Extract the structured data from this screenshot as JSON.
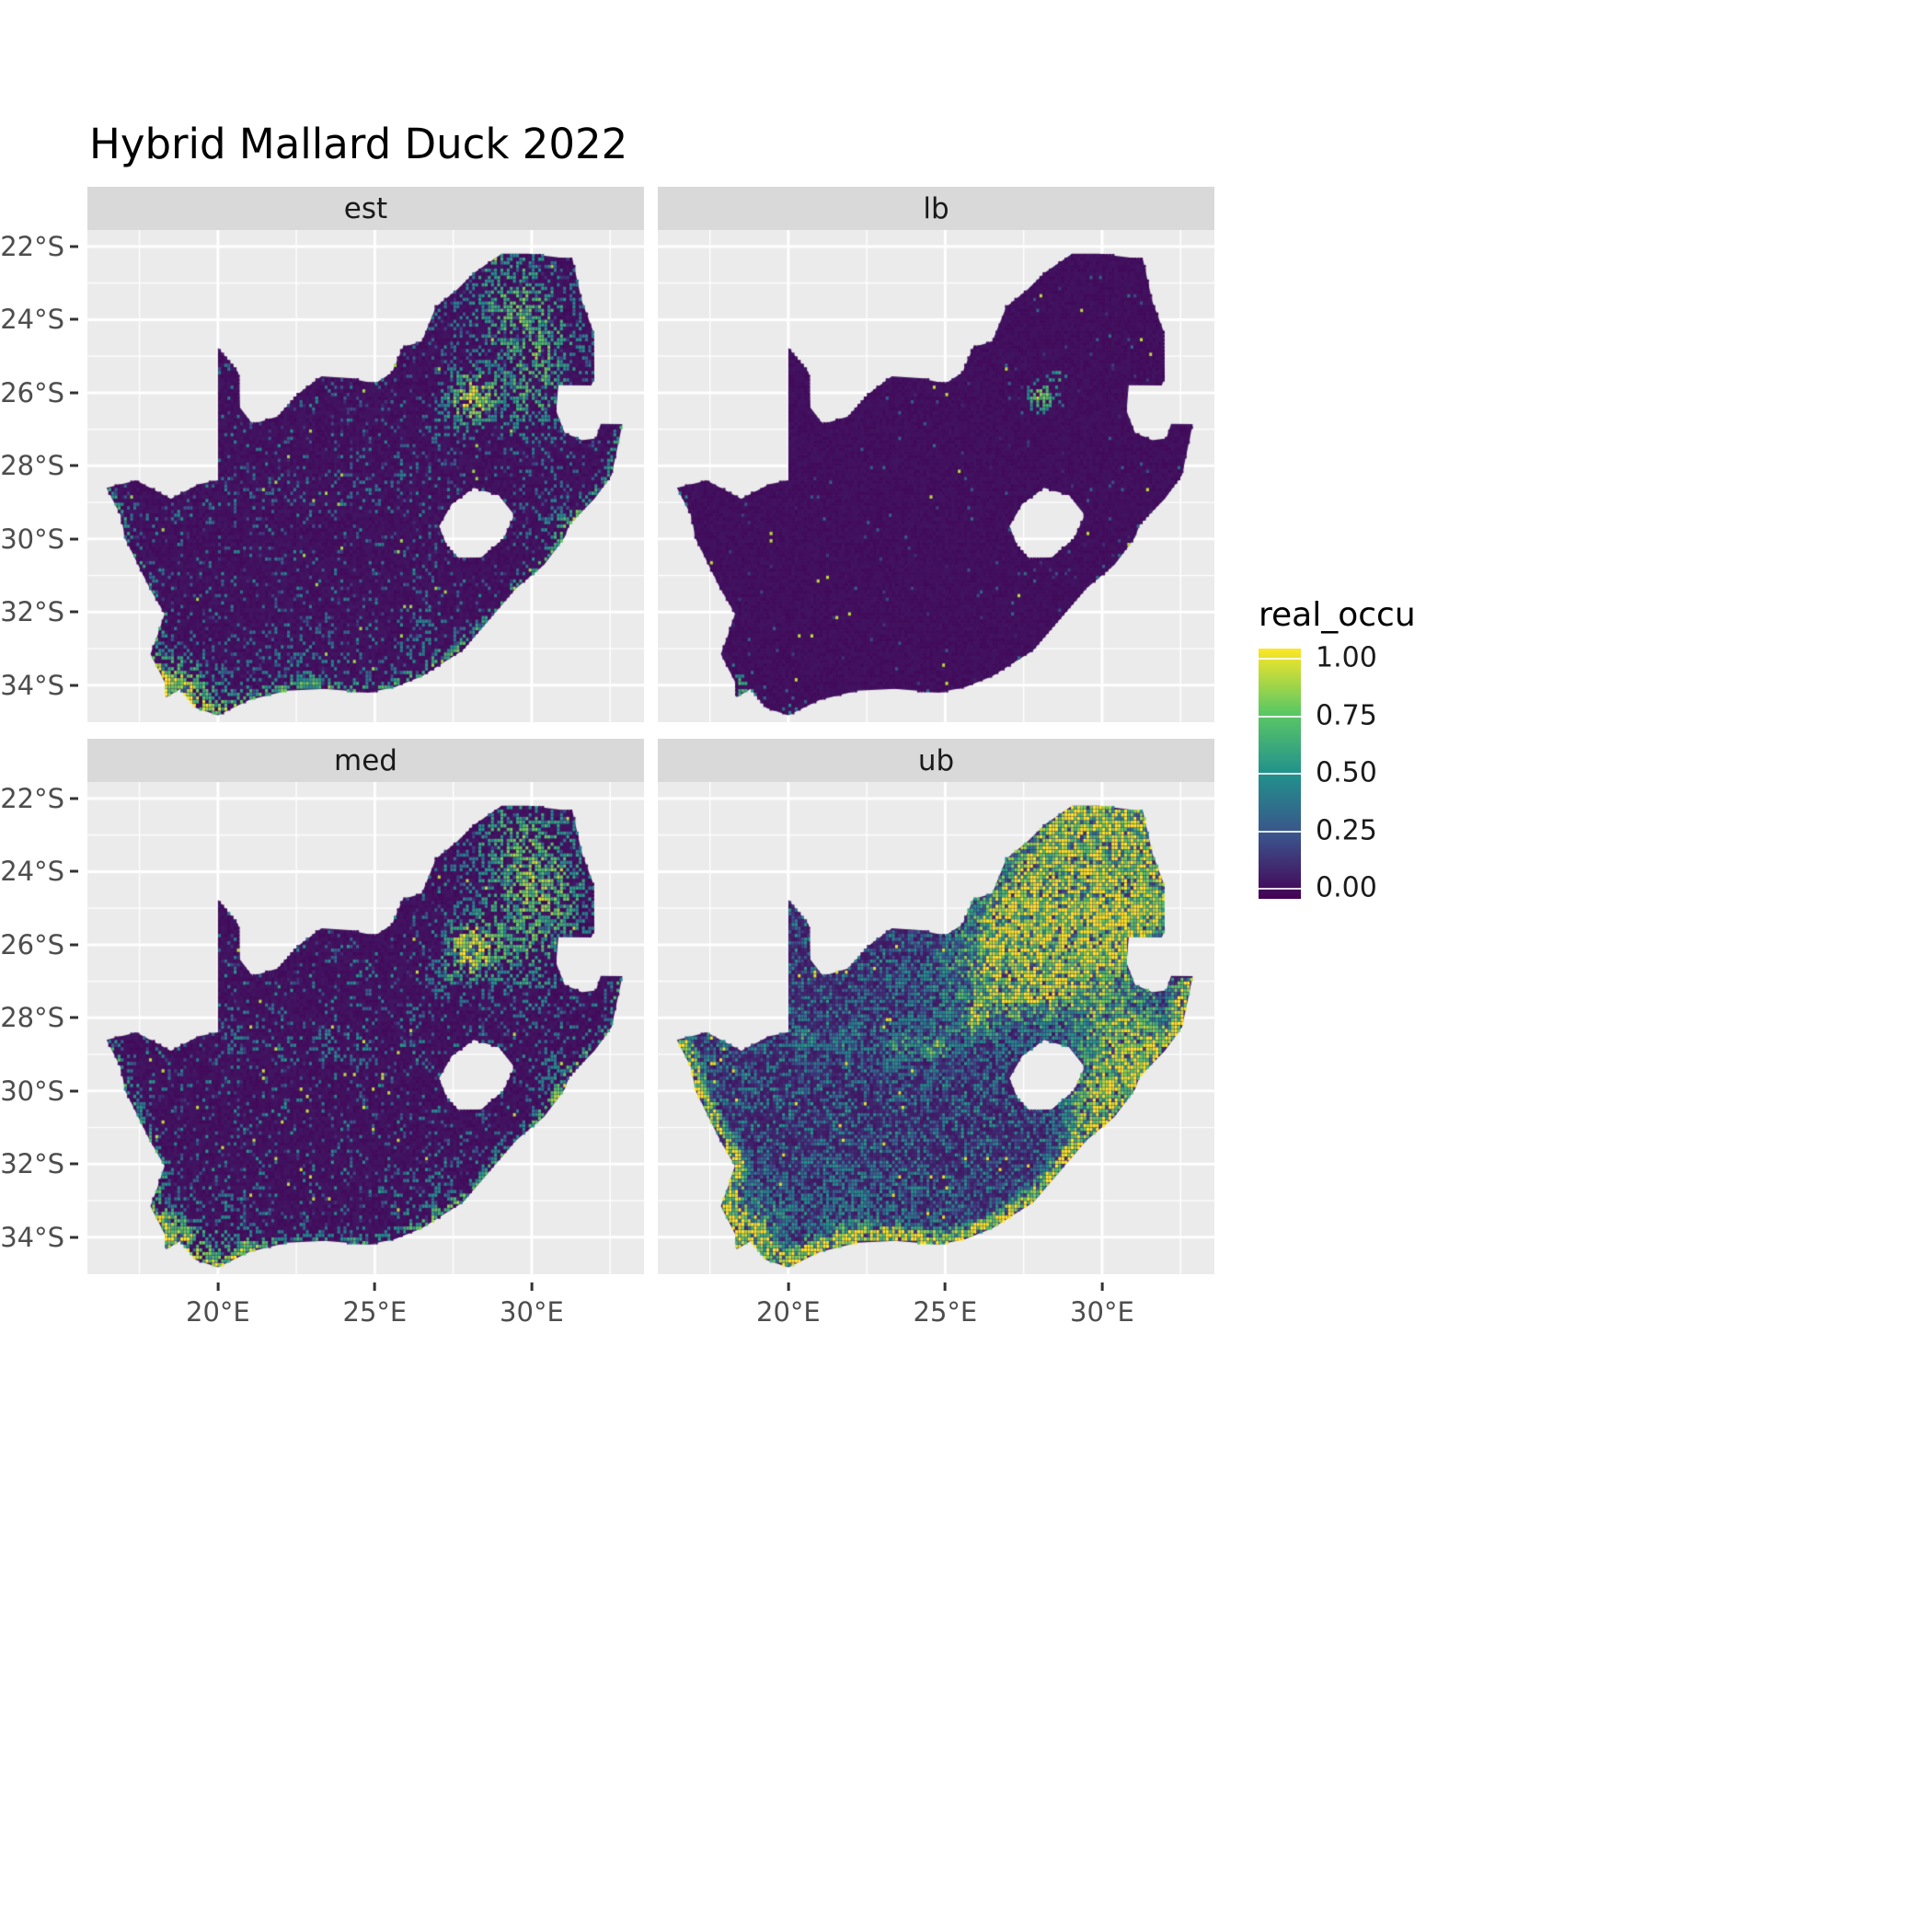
{
  "title": "Hybrid Mallard Duck 2022",
  "legend": {
    "title": "real_occu",
    "ticks": [
      "1.00",
      "0.75",
      "0.50",
      "0.25",
      "0.00"
    ]
  },
  "axes": {
    "x_ticks": [
      "20°E",
      "25°E",
      "30°E"
    ],
    "y_ticks": [
      "22°S",
      "24°S",
      "26°S",
      "28°S",
      "30°S",
      "32°S",
      "34°S"
    ]
  },
  "colors": {
    "panel_background": "#ebebeb",
    "strip_background": "#d9d9d9",
    "gridline": "#ffffff",
    "axis_text": "#4d4d4d",
    "title_text": "#000000"
  },
  "chart_data": {
    "type": "heatmap",
    "title": "Hybrid Mallard Duck 2022",
    "region": "South Africa",
    "variable": "real_occu",
    "value_range": [
      0,
      1
    ],
    "colormap": "viridis",
    "colormap_stops": [
      [
        "0.00",
        "#440154"
      ],
      [
        "0.25",
        "#3b528b"
      ],
      [
        "0.50",
        "#21918c"
      ],
      [
        "0.75",
        "#5ec962"
      ],
      [
        "1.00",
        "#fde725"
      ]
    ],
    "facet_labels": [
      "est",
      "lb",
      "med",
      "ub"
    ],
    "x_domain_deg_east": [
      15.84,
      33.58
    ],
    "y_domain_deg_south": [
      21.55,
      35.01
    ],
    "x_gridlines_major": [
      20,
      25,
      30
    ],
    "x_gridlines_minor": [
      17.5,
      22.5,
      27.5,
      32.5
    ],
    "y_gridlines_major": [
      22,
      24,
      26,
      28,
      30,
      32,
      34
    ],
    "y_gridlines_minor": [
      23,
      25,
      27,
      29,
      31,
      33
    ],
    "facets": [
      {
        "label": "est",
        "seed": 101,
        "base": 0.02,
        "texture": 0.05,
        "speckle_p": 0.1,
        "speckle_v": [
          0.12,
          0.5
        ],
        "dot_p": 0.004,
        "dot_v": 0.85,
        "coast_s": 0.45,
        "coast_r": 0.2,
        "hotspots": [
          [
            28.05,
            26.15,
            0.55,
            0.95
          ],
          [
            29.35,
            23.3,
            1.2,
            0.5
          ],
          [
            30.4,
            24.9,
            1.0,
            0.45
          ],
          [
            29.9,
            26.5,
            0.8,
            0.35
          ],
          [
            30.9,
            29.6,
            0.8,
            0.3
          ],
          [
            26.8,
            32.9,
            1.0,
            0.25
          ],
          [
            18.6,
            33.95,
            0.55,
            0.7
          ],
          [
            19.5,
            34.5,
            0.8,
            0.45
          ],
          [
            22.5,
            34.1,
            1.2,
            0.3
          ],
          [
            20.5,
            28.55,
            0.35,
            0.22
          ],
          [
            22.0,
            28.6,
            0.35,
            0.22
          ],
          [
            23.5,
            28.7,
            0.35,
            0.22
          ],
          [
            24.7,
            28.8,
            0.35,
            0.22
          ],
          [
            26.0,
            28.0,
            0.35,
            0.22
          ],
          [
            27.2,
            27.0,
            0.4,
            0.25
          ]
        ]
      },
      {
        "label": "lb",
        "seed": 202,
        "base": 0.02,
        "texture": 0.04,
        "speckle_p": 0.012,
        "speckle_v": [
          0.1,
          0.35
        ],
        "dot_p": 0.0015,
        "dot_v": 0.9,
        "coast_s": 0.04,
        "coast_r": 0.12,
        "hotspots": [
          [
            28.05,
            26.1,
            0.3,
            0.8
          ],
          [
            28.6,
            25.55,
            0.18,
            0.45
          ],
          [
            18.45,
            34.05,
            0.35,
            0.5
          ],
          [
            20.0,
            34.8,
            0.25,
            0.3
          ],
          [
            16.6,
            28.75,
            0.2,
            0.3
          ]
        ]
      },
      {
        "label": "med",
        "seed": 303,
        "base": 0.02,
        "texture": 0.05,
        "speckle_p": 0.12,
        "speckle_v": [
          0.12,
          0.55
        ],
        "dot_p": 0.005,
        "dot_v": 0.9,
        "coast_s": 0.5,
        "coast_r": 0.2,
        "hotspots": [
          [
            28.05,
            26.1,
            0.6,
            1.0
          ],
          [
            29.6,
            23.25,
            1.25,
            0.55
          ],
          [
            30.5,
            24.8,
            1.05,
            0.5
          ],
          [
            29.9,
            26.6,
            0.9,
            0.4
          ],
          [
            30.9,
            29.7,
            0.8,
            0.3
          ],
          [
            18.5,
            34.0,
            0.6,
            0.85
          ],
          [
            20.3,
            34.6,
            0.9,
            0.5
          ],
          [
            26.8,
            33.0,
            1.0,
            0.25
          ],
          [
            20.5,
            28.55,
            0.35,
            0.28
          ],
          [
            22.0,
            28.6,
            0.35,
            0.28
          ],
          [
            23.5,
            28.7,
            0.35,
            0.28
          ],
          [
            24.7,
            28.8,
            0.35,
            0.28
          ],
          [
            26.0,
            28.0,
            0.35,
            0.28
          ],
          [
            27.2,
            27.0,
            0.4,
            0.28
          ]
        ]
      },
      {
        "label": "ub",
        "seed": 404,
        "base": 0.06,
        "texture": 0.08,
        "speckle_p": 0.5,
        "speckle_v": [
          0.12,
          0.55
        ],
        "dot_p": 0.02,
        "dot_v": 0.95,
        "coast_s": 1.3,
        "coast_r": 0.28,
        "hotspots": [
          [
            29.5,
            23.2,
            1.7,
            1.0
          ],
          [
            28.2,
            25.9,
            1.35,
            1.0
          ],
          [
            30.6,
            24.7,
            1.4,
            0.95
          ],
          [
            27.3,
            26.3,
            1.3,
            0.55
          ],
          [
            30.9,
            28.8,
            1.2,
            0.85
          ],
          [
            29.8,
            30.5,
            0.9,
            0.7
          ],
          [
            25.0,
            27.5,
            1.5,
            0.3
          ],
          [
            18.6,
            33.8,
            0.8,
            0.8
          ],
          [
            22.0,
            33.6,
            1.5,
            0.35
          ],
          [
            20.5,
            28.55,
            0.35,
            0.5
          ],
          [
            22.0,
            28.6,
            0.35,
            0.5
          ],
          [
            23.5,
            28.7,
            0.35,
            0.5
          ],
          [
            24.7,
            28.8,
            0.35,
            0.5
          ],
          [
            26.0,
            28.0,
            0.35,
            0.5
          ],
          [
            27.2,
            27.0,
            0.4,
            0.55
          ]
        ]
      }
    ],
    "geometry": {
      "outline": [
        [
          20.0,
          24.77
        ],
        [
          20.65,
          25.45
        ],
        [
          20.7,
          26.4
        ],
        [
          21.1,
          26.86
        ],
        [
          21.9,
          26.65
        ],
        [
          22.6,
          26.0
        ],
        [
          23.3,
          25.55
        ],
        [
          24.2,
          25.6
        ],
        [
          25.0,
          25.75
        ],
        [
          25.55,
          25.45
        ],
        [
          25.9,
          24.75
        ],
        [
          26.5,
          24.6
        ],
        [
          26.95,
          23.65
        ],
        [
          27.6,
          23.2
        ],
        [
          28.2,
          22.7
        ],
        [
          29.05,
          22.2
        ],
        [
          29.9,
          22.2
        ],
        [
          31.3,
          22.35
        ],
        [
          31.6,
          23.5
        ],
        [
          31.95,
          24.3
        ],
        [
          32.0,
          25.6
        ],
        [
          31.9,
          25.8
        ],
        [
          30.85,
          25.78
        ],
        [
          30.78,
          26.5
        ],
        [
          31.05,
          27.1
        ],
        [
          31.6,
          27.3
        ],
        [
          32.05,
          27.25
        ],
        [
          32.2,
          26.85
        ],
        [
          32.89,
          26.86
        ],
        [
          32.55,
          28.25
        ],
        [
          32.0,
          28.9
        ],
        [
          31.2,
          29.6
        ],
        [
          31.05,
          29.95
        ],
        [
          30.4,
          30.7
        ],
        [
          29.5,
          31.35
        ],
        [
          28.7,
          32.15
        ],
        [
          27.8,
          33.05
        ],
        [
          26.5,
          33.75
        ],
        [
          25.65,
          34.05
        ],
        [
          24.8,
          34.2
        ],
        [
          23.4,
          34.1
        ],
        [
          22.2,
          34.15
        ],
        [
          21.0,
          34.4
        ],
        [
          20.0,
          34.82
        ],
        [
          19.3,
          34.62
        ],
        [
          18.8,
          34.1
        ],
        [
          18.35,
          34.33
        ],
        [
          18.3,
          33.9
        ],
        [
          17.85,
          33.15
        ],
        [
          18.05,
          32.7
        ],
        [
          18.3,
          32.05
        ],
        [
          17.8,
          31.3
        ],
        [
          17.05,
          30.0
        ],
        [
          16.9,
          29.35
        ],
        [
          16.45,
          28.6
        ],
        [
          17.4,
          28.4
        ],
        [
          18.5,
          28.9
        ],
        [
          19.4,
          28.5
        ],
        [
          20.0,
          28.4
        ]
      ],
      "hole": [
        [
          27.05,
          29.65
        ],
        [
          27.45,
          29.05
        ],
        [
          28.15,
          28.6
        ],
        [
          28.95,
          28.8
        ],
        [
          29.45,
          29.35
        ],
        [
          29.1,
          30.0
        ],
        [
          28.4,
          30.5
        ],
        [
          27.7,
          30.55
        ],
        [
          27.3,
          30.2
        ]
      ],
      "coast_segment": [
        28,
        54
      ]
    }
  }
}
